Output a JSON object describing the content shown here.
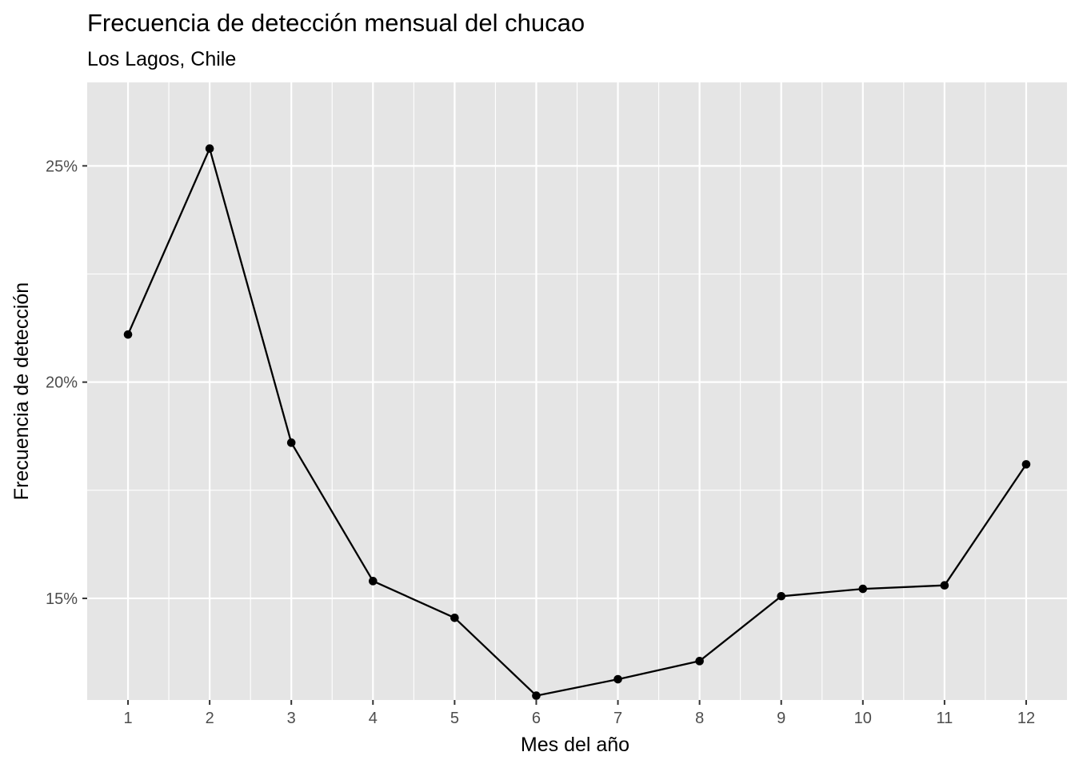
{
  "chart_data": {
    "type": "line",
    "title": "Frecuencia de detección mensual del chucao",
    "subtitle": "Los Lagos, Chile",
    "xlabel": "Mes del año",
    "ylabel": "Frecuencia de detección",
    "x": [
      1,
      2,
      3,
      4,
      5,
      6,
      7,
      8,
      9,
      10,
      11,
      12
    ],
    "x_tick_labels": [
      "1",
      "2",
      "3",
      "4",
      "5",
      "6",
      "7",
      "8",
      "9",
      "10",
      "11",
      "12"
    ],
    "y_ticks": [
      0.15,
      0.2,
      0.25
    ],
    "y_tick_labels": [
      "15%",
      "20%",
      "25%"
    ],
    "series": [
      {
        "values": [
          0.211,
          0.254,
          0.186,
          0.154,
          0.1455,
          0.1275,
          0.1313,
          0.1355,
          0.1505,
          0.1522,
          0.153,
          0.181
        ]
      }
    ],
    "xlim": [
      0.5,
      12.5
    ],
    "ylim": [
      0.1265,
      0.2693
    ],
    "grid": true,
    "panel_background": "#e5e5e5",
    "grid_color": "#ffffff",
    "line_color": "#000000",
    "point_color": "#000000"
  }
}
